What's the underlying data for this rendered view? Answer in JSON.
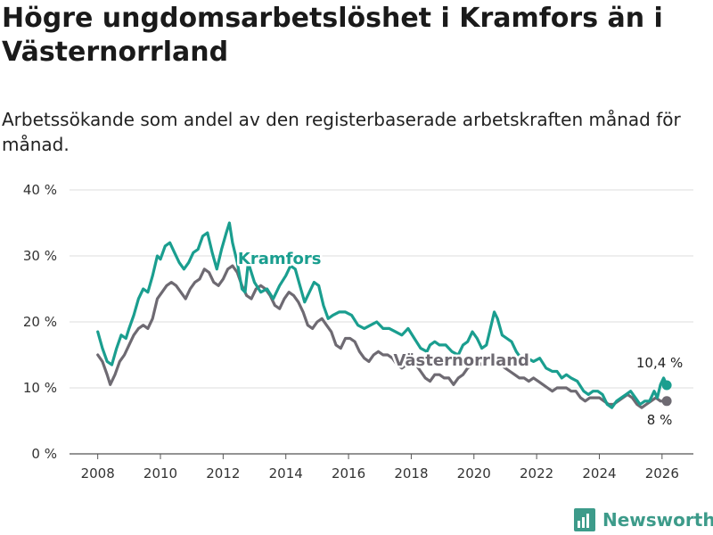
{
  "header": {
    "title": "Högre ungdomsarbetslöshet i Kramfors än i Västernorrland",
    "subtitle": "Arbetssökande som andel av den registerbaserade arbetskraften månad för månad."
  },
  "brand": {
    "name": "Newsworthy",
    "icon": "newsworthy-logo-icon"
  },
  "chart_data": {
    "type": "line",
    "title": "Högre ungdomsarbetslöshet i Kramfors än i Västernorrland",
    "subtitle": "Arbetssökande som andel av den registerbaserade arbetskraften månad för månad.",
    "xlabel": "",
    "ylabel": "",
    "xlim": [
      2007.1,
      2027.0
    ],
    "ylim": [
      0,
      40
    ],
    "grid": true,
    "x_ticks": [
      2008,
      2010,
      2012,
      2014,
      2016,
      2018,
      2020,
      2022,
      2024,
      2026
    ],
    "x_tick_labels": [
      "2008",
      "2010",
      "2012",
      "2014",
      "2016",
      "2018",
      "2020",
      "2022",
      "2024",
      "2026"
    ],
    "y_ticks": [
      0,
      10,
      20,
      30,
      40
    ],
    "y_tick_labels": [
      "0 %",
      "10 %",
      "20 %",
      "30 %",
      "40 %"
    ],
    "series": [
      {
        "name": "Kramfors",
        "color": "#1a9e8f",
        "end_label": "10,4 %",
        "points": [
          [
            2008.0,
            18.5
          ],
          [
            2008.15,
            16.0
          ],
          [
            2008.3,
            14.0
          ],
          [
            2008.45,
            13.5
          ],
          [
            2008.6,
            16.0
          ],
          [
            2008.75,
            18.0
          ],
          [
            2008.9,
            17.5
          ],
          [
            2009.0,
            19.0
          ],
          [
            2009.15,
            21.0
          ],
          [
            2009.3,
            23.5
          ],
          [
            2009.45,
            25.0
          ],
          [
            2009.6,
            24.5
          ],
          [
            2009.75,
            27.0
          ],
          [
            2009.9,
            30.0
          ],
          [
            2010.0,
            29.5
          ],
          [
            2010.15,
            31.5
          ],
          [
            2010.3,
            32.0
          ],
          [
            2010.45,
            30.5
          ],
          [
            2010.6,
            29.0
          ],
          [
            2010.75,
            28.0
          ],
          [
            2010.9,
            29.0
          ],
          [
            2011.05,
            30.5
          ],
          [
            2011.2,
            31.0
          ],
          [
            2011.35,
            33.0
          ],
          [
            2011.5,
            33.5
          ],
          [
            2011.65,
            30.5
          ],
          [
            2011.8,
            28.0
          ],
          [
            2011.95,
            31.0
          ],
          [
            2012.1,
            33.5
          ],
          [
            2012.2,
            35.0
          ],
          [
            2012.3,
            32.0
          ],
          [
            2012.45,
            29.0
          ],
          [
            2012.6,
            25.0
          ],
          [
            2012.7,
            24.5
          ],
          [
            2012.8,
            29.0
          ],
          [
            2013.0,
            26.0
          ],
          [
            2013.2,
            24.5
          ],
          [
            2013.4,
            25.0
          ],
          [
            2013.6,
            23.5
          ],
          [
            2013.8,
            25.5
          ],
          [
            2014.0,
            27.0
          ],
          [
            2014.15,
            28.5
          ],
          [
            2014.3,
            28.0
          ],
          [
            2014.45,
            25.5
          ],
          [
            2014.6,
            23.0
          ],
          [
            2014.75,
            24.5
          ],
          [
            2014.9,
            26.0
          ],
          [
            2015.05,
            25.5
          ],
          [
            2015.2,
            22.5
          ],
          [
            2015.35,
            20.5
          ],
          [
            2015.5,
            21.0
          ],
          [
            2015.7,
            21.5
          ],
          [
            2015.9,
            21.5
          ],
          [
            2016.1,
            21.0
          ],
          [
            2016.3,
            19.5
          ],
          [
            2016.5,
            19.0
          ],
          [
            2016.7,
            19.5
          ],
          [
            2016.9,
            20.0
          ],
          [
            2017.1,
            19.0
          ],
          [
            2017.3,
            19.0
          ],
          [
            2017.5,
            18.5
          ],
          [
            2017.7,
            18.0
          ],
          [
            2017.9,
            19.0
          ],
          [
            2018.1,
            17.5
          ],
          [
            2018.3,
            16.0
          ],
          [
            2018.5,
            15.5
          ],
          [
            2018.6,
            16.5
          ],
          [
            2018.75,
            17.0
          ],
          [
            2018.9,
            16.5
          ],
          [
            2019.1,
            16.5
          ],
          [
            2019.3,
            15.5
          ],
          [
            2019.5,
            15.0
          ],
          [
            2019.65,
            16.5
          ],
          [
            2019.8,
            17.0
          ],
          [
            2019.95,
            18.5
          ],
          [
            2020.1,
            17.5
          ],
          [
            2020.25,
            16.0
          ],
          [
            2020.4,
            16.5
          ],
          [
            2020.55,
            19.5
          ],
          [
            2020.65,
            21.5
          ],
          [
            2020.75,
            20.5
          ],
          [
            2020.9,
            18.0
          ],
          [
            2021.05,
            17.5
          ],
          [
            2021.2,
            17.0
          ],
          [
            2021.35,
            15.5
          ],
          [
            2021.5,
            14.5
          ],
          [
            2021.7,
            14.5
          ],
          [
            2021.9,
            14.0
          ],
          [
            2022.1,
            14.5
          ],
          [
            2022.3,
            13.0
          ],
          [
            2022.5,
            12.5
          ],
          [
            2022.65,
            12.5
          ],
          [
            2022.8,
            11.5
          ],
          [
            2022.95,
            12.0
          ],
          [
            2023.1,
            11.5
          ],
          [
            2023.3,
            11.0
          ],
          [
            2023.5,
            9.5
          ],
          [
            2023.65,
            9.0
          ],
          [
            2023.8,
            9.5
          ],
          [
            2023.95,
            9.5
          ],
          [
            2024.1,
            9.0
          ],
          [
            2024.25,
            7.5
          ],
          [
            2024.4,
            7.0
          ],
          [
            2024.55,
            8.0
          ],
          [
            2024.7,
            8.5
          ],
          [
            2024.85,
            9.0
          ],
          [
            2025.0,
            9.5
          ],
          [
            2025.15,
            8.5
          ],
          [
            2025.3,
            7.5
          ],
          [
            2025.45,
            8.0
          ],
          [
            2025.6,
            8.0
          ],
          [
            2025.75,
            9.5
          ],
          [
            2025.85,
            8.5
          ],
          [
            2025.95,
            10.5
          ],
          [
            2026.05,
            11.5
          ],
          [
            2026.15,
            10.4
          ]
        ]
      },
      {
        "name": "Västernorrland",
        "color": "#6e6a72",
        "end_label": "8 %",
        "points": [
          [
            2008.0,
            15.0
          ],
          [
            2008.15,
            14.0
          ],
          [
            2008.3,
            12.0
          ],
          [
            2008.4,
            10.5
          ],
          [
            2008.55,
            12.0
          ],
          [
            2008.7,
            14.0
          ],
          [
            2008.85,
            15.0
          ],
          [
            2009.0,
            16.5
          ],
          [
            2009.15,
            18.0
          ],
          [
            2009.3,
            19.0
          ],
          [
            2009.45,
            19.5
          ],
          [
            2009.6,
            19.0
          ],
          [
            2009.75,
            20.5
          ],
          [
            2009.9,
            23.5
          ],
          [
            2010.05,
            24.5
          ],
          [
            2010.2,
            25.5
          ],
          [
            2010.35,
            26.0
          ],
          [
            2010.5,
            25.5
          ],
          [
            2010.65,
            24.5
          ],
          [
            2010.8,
            23.5
          ],
          [
            2010.95,
            25.0
          ],
          [
            2011.1,
            26.0
          ],
          [
            2011.25,
            26.5
          ],
          [
            2011.4,
            28.0
          ],
          [
            2011.55,
            27.5
          ],
          [
            2011.7,
            26.0
          ],
          [
            2011.85,
            25.5
          ],
          [
            2012.0,
            26.5
          ],
          [
            2012.15,
            28.0
          ],
          [
            2012.3,
            28.5
          ],
          [
            2012.45,
            27.5
          ],
          [
            2012.6,
            25.5
          ],
          [
            2012.75,
            24.0
          ],
          [
            2012.9,
            23.5
          ],
          [
            2013.05,
            25.0
          ],
          [
            2013.2,
            25.5
          ],
          [
            2013.35,
            25.0
          ],
          [
            2013.5,
            24.0
          ],
          [
            2013.65,
            22.5
          ],
          [
            2013.8,
            22.0
          ],
          [
            2013.95,
            23.5
          ],
          [
            2014.1,
            24.5
          ],
          [
            2014.25,
            24.0
          ],
          [
            2014.4,
            23.0
          ],
          [
            2014.55,
            21.5
          ],
          [
            2014.7,
            19.5
          ],
          [
            2014.85,
            19.0
          ],
          [
            2015.0,
            20.0
          ],
          [
            2015.15,
            20.5
          ],
          [
            2015.3,
            19.5
          ],
          [
            2015.45,
            18.5
          ],
          [
            2015.6,
            16.5
          ],
          [
            2015.75,
            16.0
          ],
          [
            2015.9,
            17.5
          ],
          [
            2016.05,
            17.5
          ],
          [
            2016.2,
            17.0
          ],
          [
            2016.35,
            15.5
          ],
          [
            2016.5,
            14.5
          ],
          [
            2016.65,
            14.0
          ],
          [
            2016.8,
            15.0
          ],
          [
            2016.95,
            15.5
          ],
          [
            2017.1,
            15.0
          ],
          [
            2017.25,
            15.0
          ],
          [
            2017.4,
            14.5
          ],
          [
            2017.55,
            13.5
          ],
          [
            2017.7,
            13.0
          ],
          [
            2017.85,
            13.5
          ],
          [
            2018.0,
            14.0
          ],
          [
            2018.15,
            13.5
          ],
          [
            2018.3,
            12.5
          ],
          [
            2018.45,
            11.5
          ],
          [
            2018.6,
            11.0
          ],
          [
            2018.75,
            12.0
          ],
          [
            2018.9,
            12.0
          ],
          [
            2019.05,
            11.5
          ],
          [
            2019.2,
            11.5
          ],
          [
            2019.35,
            10.5
          ],
          [
            2019.5,
            11.5
          ],
          [
            2019.65,
            12.0
          ],
          [
            2019.8,
            13.0
          ],
          [
            2019.95,
            13.5
          ],
          [
            2020.1,
            14.0
          ],
          [
            2020.25,
            13.5
          ],
          [
            2020.4,
            14.5
          ],
          [
            2020.55,
            15.0
          ],
          [
            2020.7,
            14.5
          ],
          [
            2020.85,
            13.5
          ],
          [
            2021.0,
            13.0
          ],
          [
            2021.15,
            12.5
          ],
          [
            2021.3,
            12.0
          ],
          [
            2021.45,
            11.5
          ],
          [
            2021.6,
            11.5
          ],
          [
            2021.75,
            11.0
          ],
          [
            2021.9,
            11.5
          ],
          [
            2022.05,
            11.0
          ],
          [
            2022.2,
            10.5
          ],
          [
            2022.35,
            10.0
          ],
          [
            2022.5,
            9.5
          ],
          [
            2022.65,
            10.0
          ],
          [
            2022.8,
            10.0
          ],
          [
            2022.95,
            10.0
          ],
          [
            2023.1,
            9.5
          ],
          [
            2023.25,
            9.5
          ],
          [
            2023.4,
            8.5
          ],
          [
            2023.55,
            8.0
          ],
          [
            2023.7,
            8.5
          ],
          [
            2023.85,
            8.5
          ],
          [
            2024.0,
            8.5
          ],
          [
            2024.15,
            8.0
          ],
          [
            2024.3,
            7.5
          ],
          [
            2024.45,
            7.5
          ],
          [
            2024.6,
            8.0
          ],
          [
            2024.75,
            8.5
          ],
          [
            2024.9,
            9.0
          ],
          [
            2025.05,
            8.5
          ],
          [
            2025.2,
            7.5
          ],
          [
            2025.35,
            7.0
          ],
          [
            2025.5,
            7.5
          ],
          [
            2025.65,
            8.0
          ],
          [
            2025.8,
            8.5
          ],
          [
            2025.95,
            8.0
          ],
          [
            2026.05,
            8.0
          ],
          [
            2026.15,
            8.0
          ]
        ]
      }
    ],
    "annotations": [
      {
        "series": "Kramfors",
        "text": "Kramfors",
        "at_x": 2013.8,
        "at_y": 28.8
      },
      {
        "series": "Västernorrland",
        "text": "Västernorrland",
        "at_x": 2019.6,
        "at_y": 13.4
      }
    ]
  }
}
